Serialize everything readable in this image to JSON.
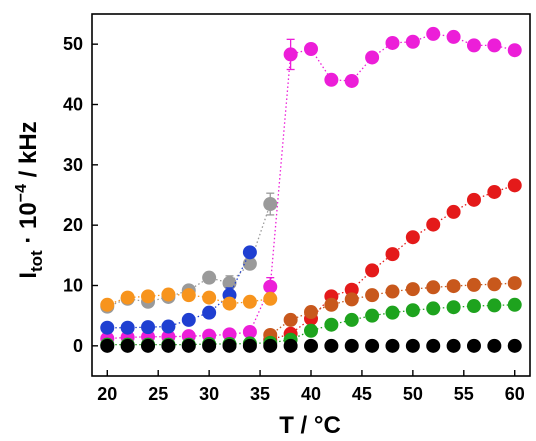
{
  "chart_data": {
    "type": "scatter",
    "xlabel": "T / °C",
    "ylabel_main": "I",
    "ylabel_sub": "tot",
    "ylabel_rest": " · 10",
    "ylabel_sup": "−4",
    "ylabel_unit": " / kHz",
    "xlim": [
      18.5,
      61.5
    ],
    "ylim": [
      -5,
      55
    ],
    "xticks": [
      20,
      25,
      30,
      35,
      40,
      45,
      50,
      55,
      60
    ],
    "yticks": [
      0,
      10,
      20,
      30,
      40,
      50
    ],
    "grid": false,
    "legend": "none",
    "series": [
      {
        "color": "#ec1ed8",
        "line": true,
        "x": [
          20,
          22,
          24,
          26,
          28,
          30,
          32,
          34,
          36,
          38,
          40,
          42,
          44,
          46,
          48,
          50,
          52,
          54,
          56,
          58,
          60
        ],
        "y": [
          1.2,
          1.4,
          1.5,
          1.5,
          1.6,
          1.7,
          1.9,
          2.3,
          9.8,
          48.3,
          49.2,
          44.1,
          43.9,
          47.8,
          50.2,
          50.4,
          51.7,
          51.2,
          49.8,
          49.8,
          49.0
        ],
        "yerr": [
          0,
          0,
          0,
          0,
          0,
          0,
          0,
          0,
          1.5,
          2.5,
          0,
          0,
          0,
          0,
          0,
          0,
          0,
          0,
          0,
          0,
          0
        ]
      },
      {
        "color": "#9a9a9a",
        "line": true,
        "x": [
          20,
          22,
          24,
          26,
          28,
          30,
          32,
          34,
          36
        ],
        "y": [
          6.5,
          7.8,
          7.3,
          8.1,
          9.2,
          11.3,
          10.4,
          13.6,
          23.5
        ],
        "yerr": [
          0,
          0,
          0,
          0,
          0,
          0,
          1.2,
          0,
          1.8
        ]
      },
      {
        "color": "#1f3fd1",
        "line": true,
        "x": [
          20,
          22,
          24,
          26,
          28,
          30,
          32,
          34
        ],
        "y": [
          3.0,
          3.0,
          3.1,
          3.2,
          4.3,
          5.5,
          8.4,
          15.5
        ],
        "yerr": [
          0,
          0,
          0,
          0,
          0,
          0,
          1.2,
          0
        ]
      },
      {
        "color": "#f7941d",
        "line": true,
        "x": [
          20,
          22,
          24,
          26,
          28,
          30,
          32,
          34,
          36
        ],
        "y": [
          6.8,
          8.0,
          8.2,
          8.5,
          8.4,
          8.0,
          7.0,
          7.3,
          7.8
        ],
        "yerr": [
          0,
          0,
          0,
          0,
          0,
          0,
          0,
          0,
          0
        ]
      },
      {
        "color": "#e41a1a",
        "line": true,
        "x": [
          36,
          38,
          40,
          42,
          44,
          46,
          48,
          50,
          52,
          54,
          56,
          58,
          60
        ],
        "y": [
          1.0,
          2.0,
          4.5,
          8.2,
          9.3,
          12.5,
          15.2,
          18.0,
          20.1,
          22.2,
          24.2,
          25.5,
          26.6
        ],
        "yerr": [
          0,
          0,
          0,
          0,
          0,
          0,
          0,
          0,
          0,
          0,
          0,
          0,
          0
        ]
      },
      {
        "color": "#c8581c",
        "line": true,
        "x": [
          36,
          38,
          40,
          42,
          44,
          46,
          48,
          50,
          52,
          54,
          56,
          58,
          60
        ],
        "y": [
          1.8,
          4.3,
          5.6,
          6.8,
          7.7,
          8.4,
          9.0,
          9.4,
          9.7,
          9.9,
          10.1,
          10.2,
          10.4
        ],
        "yerr": [
          0,
          0,
          0,
          0,
          0,
          0,
          0,
          0,
          0,
          0,
          0,
          0,
          0
        ]
      },
      {
        "color": "#1ea31e",
        "line": true,
        "x": [
          20,
          22,
          24,
          26,
          28,
          30,
          32,
          34,
          36,
          38,
          40,
          42,
          44,
          46,
          48,
          50,
          52,
          54,
          56,
          58,
          60
        ],
        "y": [
          0.2,
          0.2,
          0.2,
          0.2,
          0.2,
          0.3,
          0.3,
          0.4,
          0.5,
          1.0,
          2.5,
          3.5,
          4.3,
          5.0,
          5.5,
          5.9,
          6.2,
          6.4,
          6.6,
          6.7,
          6.8
        ],
        "yerr": [
          0,
          0,
          0,
          0,
          0,
          0,
          0,
          0,
          0,
          0,
          0,
          0,
          0,
          0,
          0,
          0,
          0,
          0,
          0,
          0,
          0
        ]
      },
      {
        "color": "#000000",
        "line": false,
        "x": [
          20,
          22,
          24,
          26,
          28,
          30,
          32,
          34,
          36,
          38,
          40,
          42,
          44,
          46,
          48,
          50,
          52,
          54,
          56,
          58,
          60
        ],
        "y": [
          0,
          0,
          0,
          0,
          0,
          0,
          0,
          0,
          0,
          0,
          0,
          0,
          0,
          0,
          0,
          0,
          0,
          0,
          0,
          0,
          0
        ],
        "yerr": [
          0,
          0,
          0,
          0,
          0,
          0,
          0,
          0,
          0,
          0,
          0,
          0,
          0,
          0,
          0,
          0,
          0,
          0,
          0,
          0,
          0
        ]
      }
    ]
  }
}
